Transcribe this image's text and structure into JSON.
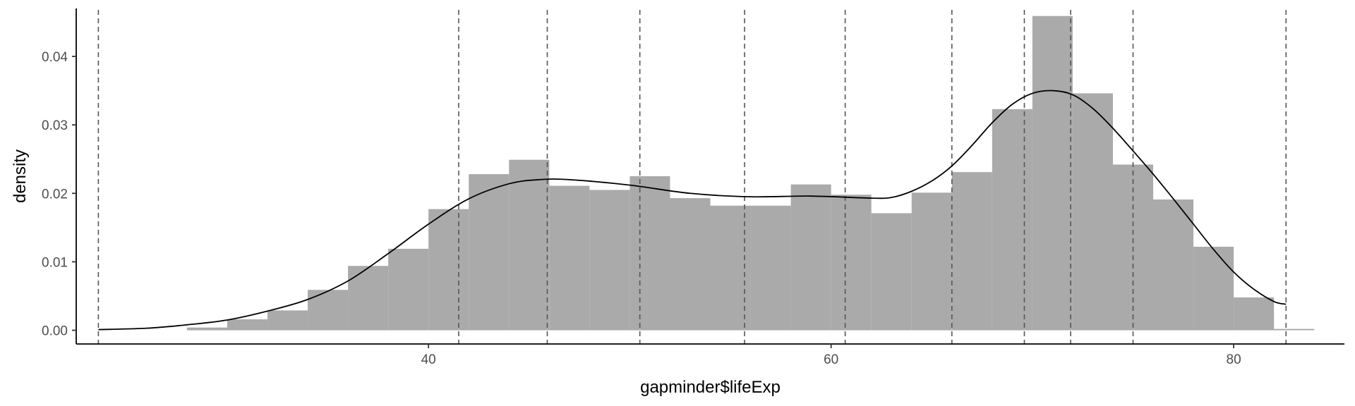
{
  "chart_data": {
    "type": "histogram",
    "xlabel": "gapminder$lifeExp",
    "ylabel": "density",
    "xlim": [
      22.5,
      85.5
    ],
    "ylim": [
      -0.002,
      0.047
    ],
    "x_ticks": [
      40,
      60,
      80
    ],
    "x_tick_labels": [
      "40",
      "60",
      "80"
    ],
    "y_ticks": [
      0.0,
      0.01,
      0.02,
      0.03,
      0.04
    ],
    "y_tick_labels": [
      "0.00",
      "0.01",
      "0.02",
      "0.03",
      "0.04"
    ],
    "grid": false,
    "legend": "none",
    "colors": {
      "bars": "#aaaaaa",
      "density_line": "#000000",
      "reference_lines": "#555555",
      "axis": "#000000",
      "tick_text": "#4d4d4d"
    },
    "bins": [
      {
        "x0": 28.0,
        "x1": 30.0,
        "density": 0.0004
      },
      {
        "x0": 30.0,
        "x1": 32.0,
        "density": 0.0016
      },
      {
        "x0": 32.0,
        "x1": 34.0,
        "density": 0.0029
      },
      {
        "x0": 34.0,
        "x1": 36.0,
        "density": 0.0059
      },
      {
        "x0": 36.0,
        "x1": 38.0,
        "density": 0.0094
      },
      {
        "x0": 38.0,
        "x1": 40.0,
        "density": 0.0119
      },
      {
        "x0": 40.0,
        "x1": 42.0,
        "density": 0.0177
      },
      {
        "x0": 42.0,
        "x1": 44.0,
        "density": 0.0228
      },
      {
        "x0": 44.0,
        "x1": 46.0,
        "density": 0.0249
      },
      {
        "x0": 46.0,
        "x1": 48.0,
        "density": 0.0211
      },
      {
        "x0": 48.0,
        "x1": 50.0,
        "density": 0.0205
      },
      {
        "x0": 50.0,
        "x1": 52.0,
        "density": 0.0225
      },
      {
        "x0": 52.0,
        "x1": 54.0,
        "density": 0.0193
      },
      {
        "x0": 54.0,
        "x1": 56.0,
        "density": 0.0182
      },
      {
        "x0": 56.0,
        "x1": 58.0,
        "density": 0.0182
      },
      {
        "x0": 58.0,
        "x1": 60.0,
        "density": 0.0213
      },
      {
        "x0": 60.0,
        "x1": 62.0,
        "density": 0.0198
      },
      {
        "x0": 62.0,
        "x1": 64.0,
        "density": 0.0171
      },
      {
        "x0": 64.0,
        "x1": 66.0,
        "density": 0.0201
      },
      {
        "x0": 66.0,
        "x1": 68.0,
        "density": 0.0231
      },
      {
        "x0": 68.0,
        "x1": 70.0,
        "density": 0.0323
      },
      {
        "x0": 70.0,
        "x1": 72.0,
        "density": 0.0459
      },
      {
        "x0": 72.0,
        "x1": 74.0,
        "density": 0.0346
      },
      {
        "x0": 74.0,
        "x1": 76.0,
        "density": 0.0242
      },
      {
        "x0": 76.0,
        "x1": 78.0,
        "density": 0.0191
      },
      {
        "x0": 78.0,
        "x1": 80.0,
        "density": 0.0122
      },
      {
        "x0": 80.0,
        "x1": 82.0,
        "density": 0.0048
      },
      {
        "x0": 82.0,
        "x1": 84.0,
        "density": 0.0002
      }
    ],
    "density_curve": {
      "x": [
        23.6,
        26.0,
        28.0,
        30.0,
        32.0,
        34.0,
        36.0,
        38.0,
        40.0,
        42.0,
        44.0,
        45.5,
        47.0,
        50.0,
        53.0,
        56.0,
        59.0,
        62.0,
        63.0,
        64.0,
        65.0,
        66.0,
        67.0,
        68.0,
        69.0,
        70.0,
        71.0,
        72.0,
        73.0,
        74.0,
        75.0,
        76.0,
        77.0,
        78.0,
        79.0,
        80.0,
        81.0,
        82.0,
        82.6
      ],
      "y": [
        0.0001,
        0.0003,
        0.0008,
        0.0015,
        0.0028,
        0.0045,
        0.0072,
        0.0112,
        0.0155,
        0.0192,
        0.0214,
        0.022,
        0.022,
        0.0212,
        0.02,
        0.0195,
        0.0196,
        0.0193,
        0.0194,
        0.0203,
        0.0218,
        0.024,
        0.027,
        0.0303,
        0.033,
        0.0346,
        0.035,
        0.0344,
        0.0324,
        0.0295,
        0.0262,
        0.0228,
        0.0192,
        0.0155,
        0.0118,
        0.0085,
        0.006,
        0.0042,
        0.0038
      ]
    },
    "reference_lines_x": [
      23.6,
      41.5,
      45.9,
      50.5,
      55.7,
      60.7,
      66.0,
      69.6,
      71.9,
      75.0,
      82.6
    ]
  }
}
